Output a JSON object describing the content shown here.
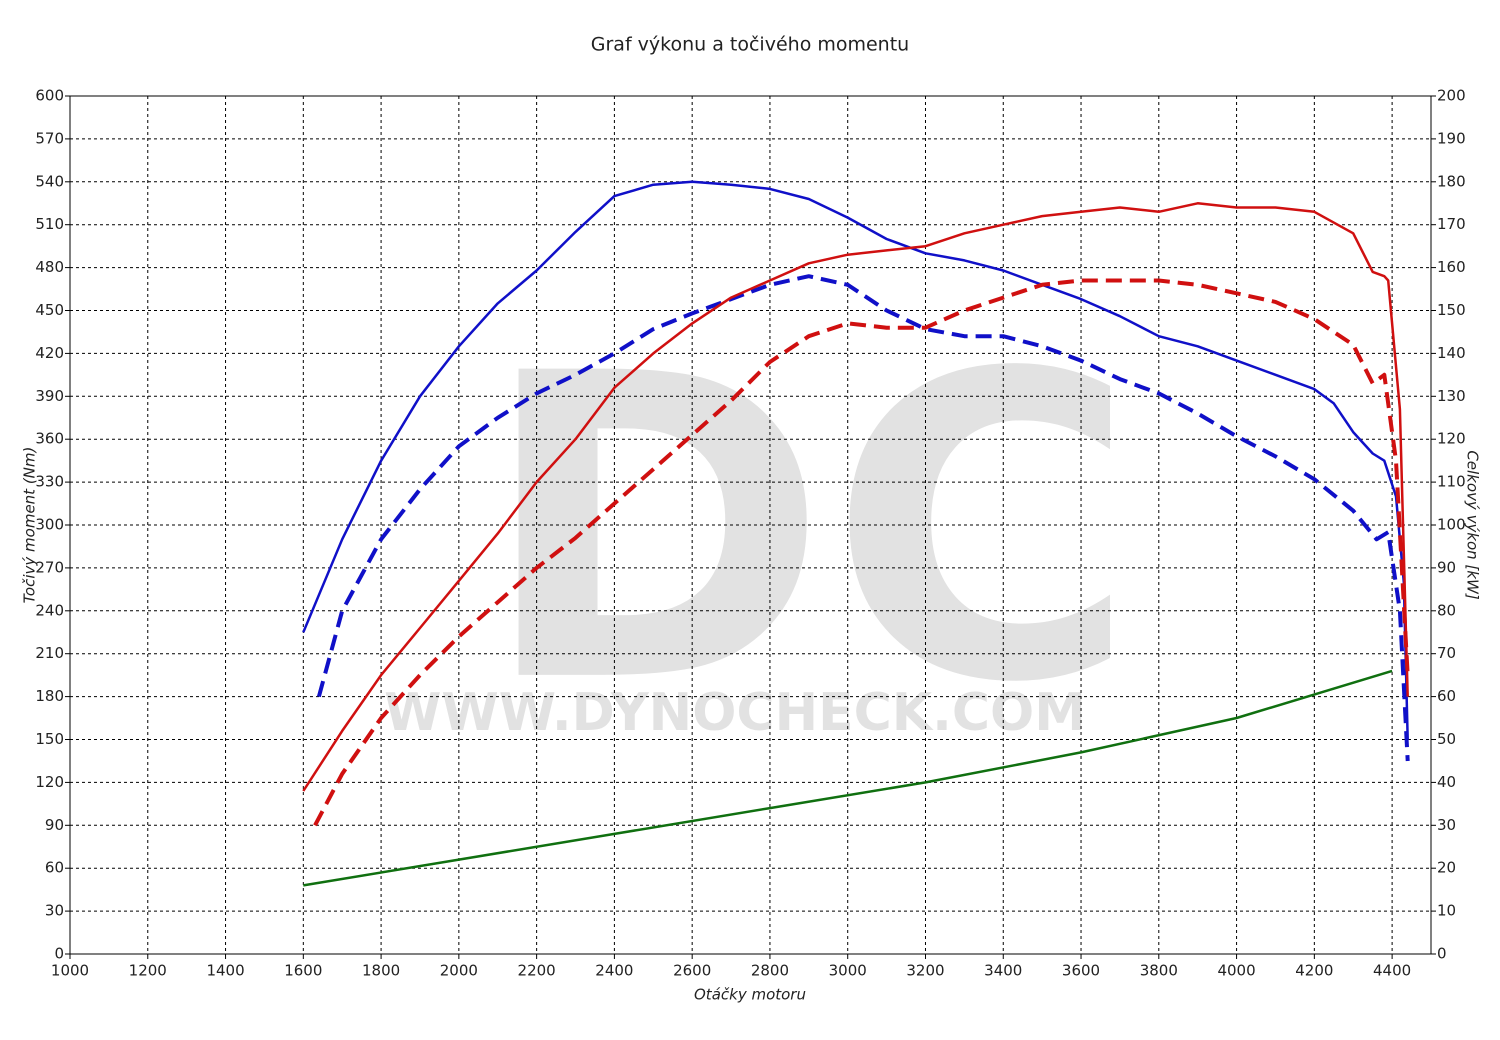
{
  "chart_data": {
    "type": "line",
    "title": "Graf výkonu a točivého momentu",
    "x_label": "Otáčky motoru",
    "y_label": "Točivý moment (Nm)",
    "y2_label": "Celkový výkon [kW]",
    "watermark": "DC",
    "watermark_url": "WWW.DYNOCHECK.COM",
    "xlim": [
      1000,
      4500
    ],
    "xticks": [
      1000,
      1200,
      1400,
      1600,
      1800,
      2000,
      2200,
      2400,
      2600,
      2800,
      3000,
      3200,
      3400,
      3600,
      3800,
      4000,
      4200,
      4400
    ],
    "ylim": [
      0,
      600
    ],
    "yticks": [
      0,
      30,
      60,
      90,
      120,
      150,
      180,
      210,
      240,
      270,
      300,
      330,
      360,
      390,
      420,
      450,
      480,
      510,
      540,
      570,
      600
    ],
    "y2lim": [
      0,
      200
    ],
    "y2ticks": [
      0,
      10,
      20,
      30,
      40,
      50,
      60,
      70,
      80,
      90,
      100,
      110,
      120,
      130,
      140,
      150,
      160,
      170,
      180,
      190,
      200
    ],
    "grid": true,
    "series": [
      {
        "color": "#1010c8",
        "dashed": false,
        "axis": "y",
        "x": [
          1600,
          1700,
          1800,
          1900,
          2000,
          2100,
          2200,
          2300,
          2400,
          2500,
          2600,
          2700,
          2800,
          2900,
          3000,
          3100,
          3200,
          3300,
          3400,
          3500,
          3600,
          3700,
          3800,
          3900,
          4000,
          4100,
          4200,
          4250,
          4300,
          4350,
          4380,
          4410,
          4430,
          4440
        ],
        "values": [
          225,
          290,
          345,
          390,
          425,
          455,
          478,
          505,
          530,
          538,
          540,
          538,
          535,
          528,
          515,
          500,
          490,
          485,
          478,
          468,
          458,
          446,
          432,
          425,
          415,
          405,
          395,
          385,
          365,
          350,
          345,
          320,
          260,
          150
        ]
      },
      {
        "color": "#1010c8",
        "dashed": true,
        "axis": "y",
        "x": [
          1640,
          1700,
          1800,
          1900,
          2000,
          2100,
          2200,
          2300,
          2400,
          2500,
          2600,
          2700,
          2800,
          2900,
          3000,
          3100,
          3200,
          3300,
          3400,
          3500,
          3600,
          3700,
          3800,
          3900,
          4000,
          4100,
          4200,
          4300,
          4360,
          4390,
          4420,
          4440
        ],
        "values": [
          180,
          240,
          290,
          325,
          355,
          375,
          392,
          405,
          420,
          437,
          448,
          458,
          468,
          474,
          468,
          450,
          437,
          432,
          432,
          425,
          415,
          402,
          392,
          378,
          362,
          348,
          332,
          310,
          290,
          295,
          240,
          135
        ]
      },
      {
        "color": "#d01010",
        "dashed": false,
        "axis": "y2",
        "x": [
          1600,
          1700,
          1800,
          1900,
          2000,
          2100,
          2200,
          2300,
          2400,
          2500,
          2600,
          2700,
          2800,
          2900,
          3000,
          3100,
          3200,
          3300,
          3400,
          3500,
          3600,
          3700,
          3800,
          3900,
          4000,
          4100,
          4200,
          4300,
          4350,
          4380,
          4390,
          4420,
          4440
        ],
        "values": [
          38,
          52,
          65,
          76,
          87,
          98,
          110,
          120,
          132,
          140,
          147,
          153,
          157,
          161,
          163,
          164,
          165,
          168,
          170,
          172,
          173,
          174,
          173,
          175,
          174,
          174,
          173,
          168,
          159,
          158,
          157,
          127,
          60
        ]
      },
      {
        "color": "#d01010",
        "dashed": true,
        "axis": "y2",
        "x": [
          1630,
          1700,
          1800,
          1900,
          2000,
          2100,
          2200,
          2300,
          2400,
          2500,
          2600,
          2700,
          2800,
          2900,
          3000,
          3100,
          3200,
          3300,
          3400,
          3500,
          3600,
          3700,
          3800,
          3900,
          4000,
          4100,
          4200,
          4300,
          4350,
          4380,
          4410,
          4440
        ],
        "values": [
          30,
          42,
          55,
          65,
          74,
          82,
          90,
          97,
          105,
          113,
          121,
          129,
          138,
          144,
          147,
          146,
          146,
          150,
          153,
          156,
          157,
          157,
          157,
          156,
          154,
          152,
          148,
          142,
          133,
          135,
          115,
          65
        ]
      },
      {
        "color": "#107010",
        "dashed": false,
        "axis": "y2",
        "x": [
          1600,
          2000,
          2400,
          2800,
          3200,
          3600,
          4000,
          4400
        ],
        "values": [
          16,
          22,
          28,
          34,
          40,
          47,
          55,
          66
        ]
      }
    ]
  }
}
